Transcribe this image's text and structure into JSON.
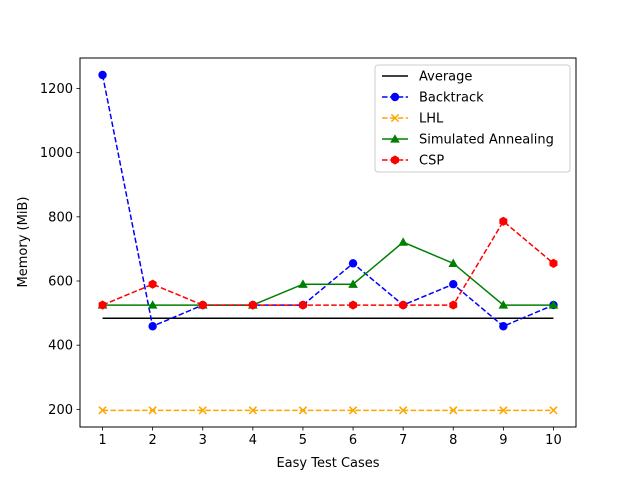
{
  "chart_data": {
    "type": "line",
    "title": "",
    "xlabel": "Easy Test Cases",
    "ylabel": "Memory (MiB)",
    "x": [
      1,
      2,
      3,
      4,
      5,
      6,
      7,
      8,
      9,
      10
    ],
    "xticks": [
      "1",
      "2",
      "3",
      "4",
      "5",
      "6",
      "7",
      "8",
      "9",
      "10"
    ],
    "yticks": [
      200,
      400,
      600,
      800,
      1000,
      1200
    ],
    "xlim": [
      0.55,
      10.45
    ],
    "ylim": [
      145,
      1295
    ],
    "grid": false,
    "legend_position": "top-right",
    "series": [
      {
        "name": "Average",
        "color": "#000000",
        "dash": "solid",
        "marker": "none",
        "values": [
          484,
          484,
          484,
          484,
          484,
          484,
          484,
          484,
          484,
          484
        ]
      },
      {
        "name": "Backtrack",
        "color": "#0000ff",
        "dash": "dashed",
        "marker": "circle",
        "values": [
          1242,
          459,
          525,
          525,
          525,
          655,
          525,
          590,
          459,
          525
        ]
      },
      {
        "name": "LHL",
        "color": "#ffa500",
        "dash": "dashed",
        "marker": "x",
        "values": [
          197,
          197,
          197,
          197,
          197,
          197,
          197,
          197,
          197,
          197
        ]
      },
      {
        "name": "Simulated Annealing",
        "color": "#008000",
        "dash": "solid",
        "marker": "triangle",
        "values": [
          525,
          525,
          525,
          525,
          590,
          590,
          721,
          655,
          525,
          525
        ]
      },
      {
        "name": "CSP",
        "color": "#ff0000",
        "dash": "dashed",
        "marker": "hexagon",
        "values": [
          525,
          590,
          525,
          525,
          525,
          525,
          525,
          525,
          786,
          655
        ]
      }
    ]
  }
}
